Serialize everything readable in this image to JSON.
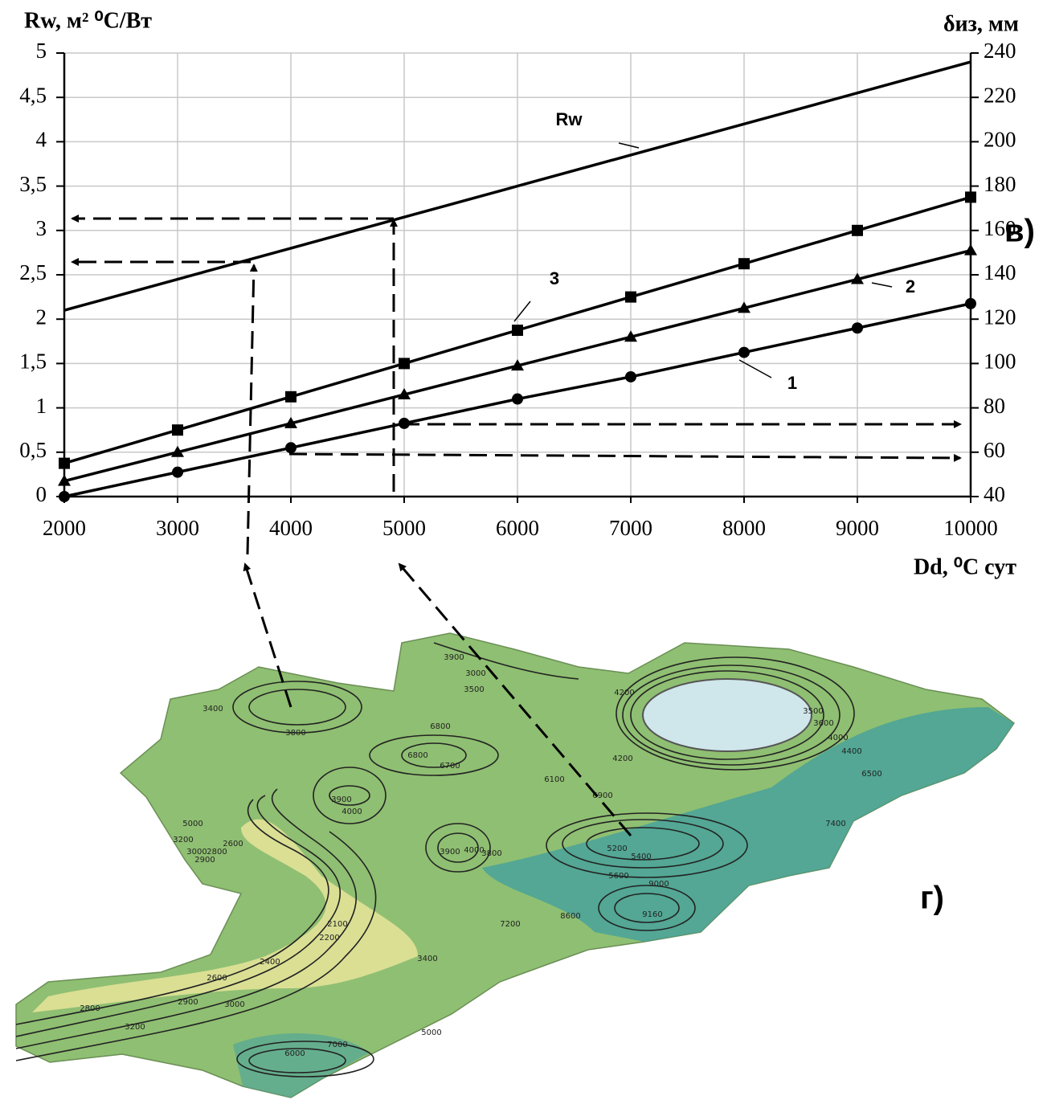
{
  "chart_data": {
    "type": "line",
    "y_label": "Rw, м² ⁰С/Вт",
    "y2_label": "δиз, мм",
    "x_label": "Dd, ⁰С сут",
    "x": [
      2000,
      3000,
      4000,
      5000,
      6000,
      7000,
      8000,
      9000,
      10000
    ],
    "xlim": [
      2000,
      10000
    ],
    "xticks": [
      2000,
      3000,
      4000,
      5000,
      6000,
      7000,
      8000,
      9000,
      10000
    ],
    "ylim": [
      0,
      5
    ],
    "yticks": [
      0,
      {
        "value": 0.5,
        "label": "0,5"
      },
      1,
      {
        "value": 1.5,
        "label": "1,5"
      },
      2,
      {
        "value": 2.5,
        "label": "2,5"
      },
      3,
      {
        "value": 3.5,
        "label": "3,5"
      },
      4,
      {
        "value": 4.5,
        "label": "4,5"
      },
      5
    ],
    "y2lim": [
      40,
      240
    ],
    "y2ticks": [
      40,
      60,
      80,
      100,
      120,
      140,
      160,
      180,
      200,
      220,
      240
    ],
    "grid": true,
    "series": [
      {
        "name": "Rw",
        "color": "#000000",
        "marker": "none",
        "values": [
          2.1,
          2.45,
          2.8,
          3.15,
          3.5,
          3.85,
          4.2,
          4.55,
          4.9
        ]
      },
      {
        "name": "3",
        "color": "#000000",
        "marker": "square",
        "axis": "y2",
        "values": [
          55,
          70,
          85,
          100,
          115,
          130,
          145,
          160,
          175
        ]
      },
      {
        "name": "2",
        "color": "#000000",
        "marker": "triangle",
        "axis": "y2",
        "values": [
          47,
          60,
          73,
          86,
          99,
          112,
          125,
          138,
          151
        ]
      },
      {
        "name": "1",
        "color": "#000000",
        "marker": "circle",
        "axis": "y2",
        "values": [
          40,
          51,
          62,
          73,
          84,
          94,
          105,
          116,
          127
        ]
      }
    ],
    "panel_labels": [
      "в)",
      "г)"
    ]
  },
  "map": {
    "contour_labels": [
      "3900",
      "3000",
      "3500",
      "4200",
      "3400",
      "3800",
      "6800",
      "6700",
      "6800",
      "4200",
      "6100",
      "6900",
      "3900",
      "4000",
      "5000",
      "3200",
      "3000",
      "2900",
      "2800",
      "2600",
      "3900",
      "4000",
      "3800",
      "5200",
      "5400",
      "5600",
      "7400",
      "6500",
      "9000",
      "9160",
      "8600",
      "7200",
      "2100",
      "2200",
      "2400",
      "2600",
      "2800",
      "2900",
      "3000",
      "3200",
      "3400",
      "7000",
      "6000",
      "5000",
      "3500",
      "3600",
      "4000",
      "4400"
    ]
  }
}
